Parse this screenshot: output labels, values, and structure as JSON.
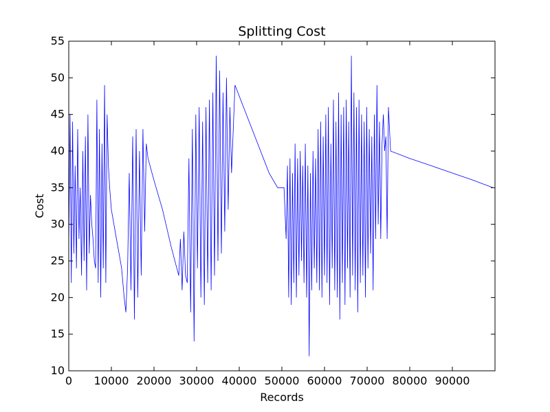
{
  "chart_data": {
    "type": "line",
    "title": "Splitting Cost",
    "xlabel": "Records",
    "ylabel": "Cost",
    "xlim": [
      0,
      100000
    ],
    "ylim": [
      10,
      55
    ],
    "xticks": [
      0,
      10000,
      20000,
      30000,
      40000,
      50000,
      60000,
      70000,
      80000,
      90000
    ],
    "yticks": [
      10,
      15,
      20,
      25,
      30,
      35,
      40,
      45,
      50,
      55
    ],
    "grid": false,
    "legend": "none",
    "series_color": "#0000ff",
    "series": [
      {
        "x": [
          0,
          300,
          600,
          900,
          1200,
          1500,
          1800,
          2100,
          2400,
          2700,
          3000,
          3300,
          3600,
          3900,
          4200,
          4500,
          4800,
          5100,
          5400,
          5700,
          6000,
          6300,
          6600,
          6900,
          7200,
          7500,
          7800,
          8100,
          8400,
          8700,
          9000,
          9300,
          9600,
          10000,
          10600,
          11200,
          11800,
          12400,
          13000,
          13400,
          13800,
          14200,
          14600,
          15000,
          15400,
          15800,
          16200,
          16600,
          17000,
          17400,
          17800,
          18200,
          18600,
          20000,
          22000,
          24000,
          25800,
          26200,
          26600,
          27000,
          27400,
          27800,
          28200,
          28600,
          29000,
          29400,
          29800,
          30200,
          30600,
          31000,
          31400,
          31800,
          32200,
          32600,
          33000,
          33400,
          33800,
          34200,
          34600,
          35000,
          35400,
          35800,
          36200,
          36600,
          37000,
          37400,
          37800,
          38200,
          38600,
          39000,
          41000,
          43000,
          45000,
          47000,
          49000,
          50500,
          51000,
          51300,
          51600,
          51900,
          52200,
          52500,
          52800,
          53100,
          53400,
          53700,
          54000,
          54300,
          54600,
          54900,
          55200,
          55500,
          55800,
          56100,
          56400,
          56700,
          57000,
          57300,
          57600,
          57900,
          58200,
          58500,
          58800,
          59100,
          59400,
          59700,
          60000,
          60300,
          60600,
          60900,
          61200,
          61500,
          61800,
          62100,
          62400,
          62700,
          63000,
          63300,
          63600,
          63900,
          64200,
          64500,
          64800,
          65100,
          65400,
          65700,
          66000,
          66300,
          66600,
          66900,
          67200,
          67500,
          67800,
          68100,
          68400,
          68700,
          69000,
          69300,
          69600,
          69900,
          70200,
          70500,
          70800,
          71100,
          71400,
          71700,
          72000,
          72300,
          72600,
          72900,
          73200,
          73500,
          73800,
          74100,
          74400,
          74700,
          75000,
          75500,
          80000,
          85000,
          90000,
          95000,
          99500
        ],
        "y": [
          27,
          45,
          22,
          44,
          26,
          38,
          24,
          43,
          28,
          35,
          23,
          40,
          25,
          42,
          21,
          45,
          26,
          34,
          30,
          28,
          25,
          24,
          47,
          22,
          43,
          20,
          41,
          24,
          49,
          22,
          45,
          38,
          35,
          32,
          30,
          28,
          26,
          24,
          20,
          18,
          24,
          37,
          21,
          42,
          17,
          43,
          20,
          40,
          23,
          43,
          29,
          41,
          39,
          36,
          32,
          27,
          23,
          28,
          21,
          29,
          23,
          22,
          39,
          18,
          43,
          14,
          45,
          24,
          46,
          20,
          44,
          19,
          46,
          22,
          47,
          21,
          48,
          23,
          53,
          25,
          51,
          26,
          48,
          29,
          50,
          32,
          46,
          37,
          43,
          49,
          46,
          43,
          40,
          37,
          35,
          35,
          28,
          38,
          20,
          39,
          19,
          37,
          22,
          41,
          20,
          39,
          23,
          40,
          25,
          38,
          22,
          41,
          20,
          38,
          12,
          37,
          21,
          40,
          24,
          39,
          22,
          43,
          21,
          44,
          20,
          42,
          23,
          45,
          22,
          46,
          19,
          41,
          24,
          47,
          21,
          44,
          20,
          48,
          17,
          45,
          22,
          46,
          19,
          47,
          24,
          44,
          20,
          53,
          23,
          48,
          21,
          46,
          18,
          47,
          22,
          45,
          23,
          44,
          20,
          46,
          24,
          43,
          26,
          42,
          21,
          45,
          28,
          49,
          30,
          44,
          28,
          41,
          45,
          40,
          42,
          28,
          46,
          40,
          39,
          38,
          37,
          36,
          35
        ]
      }
    ]
  }
}
